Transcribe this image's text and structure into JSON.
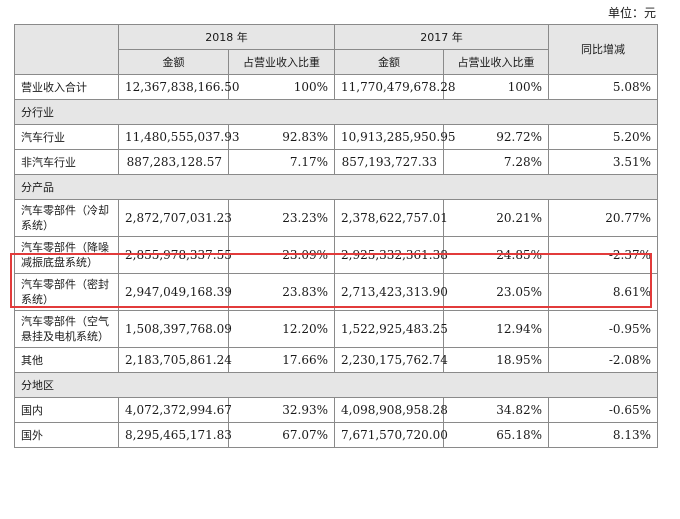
{
  "unit": "单位：元",
  "header": {
    "year_2018": "2018 年",
    "year_2017": "2017 年",
    "yoy": "同比增减",
    "amount": "金额",
    "share": "占营业收入比重"
  },
  "rows": [
    {
      "type": "data",
      "label": "营业收入合计",
      "a2018": "12,367,838,166.50",
      "s2018": "100%",
      "a2017": "11,770,479,678.28",
      "s2017": "100%",
      "yoy": "5.08%"
    },
    {
      "type": "section",
      "label": "分行业"
    },
    {
      "type": "data",
      "label": "汽车行业",
      "a2018": "11,480,555,037.93",
      "s2018": "92.83%",
      "a2017": "10,913,285,950.95",
      "s2017": "92.72%",
      "yoy": "5.20%"
    },
    {
      "type": "data",
      "label": "非汽车行业",
      "a2018": "887,283,128.57",
      "s2018": "7.17%",
      "a2017": "857,193,727.33",
      "s2017": "7.28%",
      "yoy": "3.51%"
    },
    {
      "type": "section",
      "label": "分产品"
    },
    {
      "type": "data",
      "tall": true,
      "label": "汽车零部件（冷却系统）",
      "a2018": "2,872,707,031.23",
      "s2018": "23.23%",
      "a2017": "2,378,622,757.01",
      "s2017": "20.21%",
      "yoy": "20.77%"
    },
    {
      "type": "data",
      "tall": true,
      "label": "汽车零部件（降噪减振底盘系统）",
      "a2018": "2,855,978,337.55",
      "s2018": "23.09%",
      "a2017": "2,925,332,361.38",
      "s2017": "24.85%",
      "yoy": "-2.37%"
    },
    {
      "type": "data",
      "tall": true,
      "label": "汽车零部件（密封系统）",
      "a2018": "2,947,049,168.39",
      "s2018": "23.83%",
      "a2017": "2,713,423,313.90",
      "s2017": "23.05%",
      "yoy": "8.61%"
    },
    {
      "type": "data",
      "tall": true,
      "label": "汽车零部件（空气悬挂及电机系统）",
      "a2018": "1,508,397,768.09",
      "s2018": "12.20%",
      "a2017": "1,522,925,483.25",
      "s2017": "12.94%",
      "yoy": "-0.95%"
    },
    {
      "type": "data",
      "label": "其他",
      "a2018": "2,183,705,861.24",
      "s2018": "17.66%",
      "a2017": "2,230,175,762.74",
      "s2017": "18.95%",
      "yoy": "-2.08%"
    },
    {
      "type": "section",
      "label": "分地区"
    },
    {
      "type": "data",
      "label": "国内",
      "a2018": "4,072,372,994.67",
      "s2018": "32.93%",
      "a2017": "4,098,908,958.28",
      "s2017": "34.82%",
      "yoy": "-0.65%"
    },
    {
      "type": "data",
      "label": "国外",
      "a2018": "8,295,465,171.83",
      "s2018": "67.07%",
      "a2017": "7,671,570,720.00",
      "s2017": "65.18%",
      "yoy": "8.13%"
    }
  ],
  "highlight_color": "#e23b3b"
}
